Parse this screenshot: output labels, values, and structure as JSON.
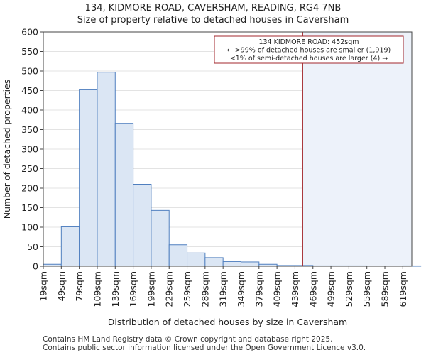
{
  "chart_data": {
    "type": "bar",
    "title": "134, KIDMORE ROAD, CAVERSHAM, READING, RG4 7NB",
    "subtitle": "Size of property relative to detached houses in Caversham",
    "xlabel": "Distribution of detached houses by size in Caversham",
    "ylabel": "Number of detached properties",
    "ylim": [
      0,
      600
    ],
    "yticks": [
      0,
      50,
      100,
      150,
      200,
      250,
      300,
      350,
      400,
      450,
      500,
      550,
      600
    ],
    "xlim": [
      19,
      634
    ],
    "bin_width": 30,
    "categories": [
      "19sqm",
      "49sqm",
      "79sqm",
      "109sqm",
      "139sqm",
      "169sqm",
      "199sqm",
      "229sqm",
      "259sqm",
      "289sqm",
      "319sqm",
      "349sqm",
      "379sqm",
      "409sqm",
      "439sqm",
      "469sqm",
      "499sqm",
      "529sqm",
      "559sqm",
      "589sqm",
      "619sqm"
    ],
    "values": [
      5,
      101,
      452,
      497,
      366,
      210,
      143,
      55,
      34,
      22,
      12,
      11,
      5,
      2,
      2,
      1,
      1,
      1,
      0,
      0,
      1
    ],
    "marker": {
      "value": 452,
      "label_line1": "134 KIDMORE ROAD: 452sqm",
      "label_line2": "← >99% of detached houses are smaller (1,919)",
      "label_line3": "<1% of semi-detached houses are larger (4) →"
    },
    "colors": {
      "bar_fill": "#dbe6f4",
      "bar_stroke": "#4f7fbf",
      "highlight_fill": "#edf2fa",
      "marker_line": "#a3272c",
      "grid": "#e3e3e3"
    }
  },
  "footer": {
    "line1": "Contains HM Land Registry data © Crown copyright and database right 2025.",
    "line2": "Contains public sector information licensed under the Open Government Licence v3.0."
  }
}
